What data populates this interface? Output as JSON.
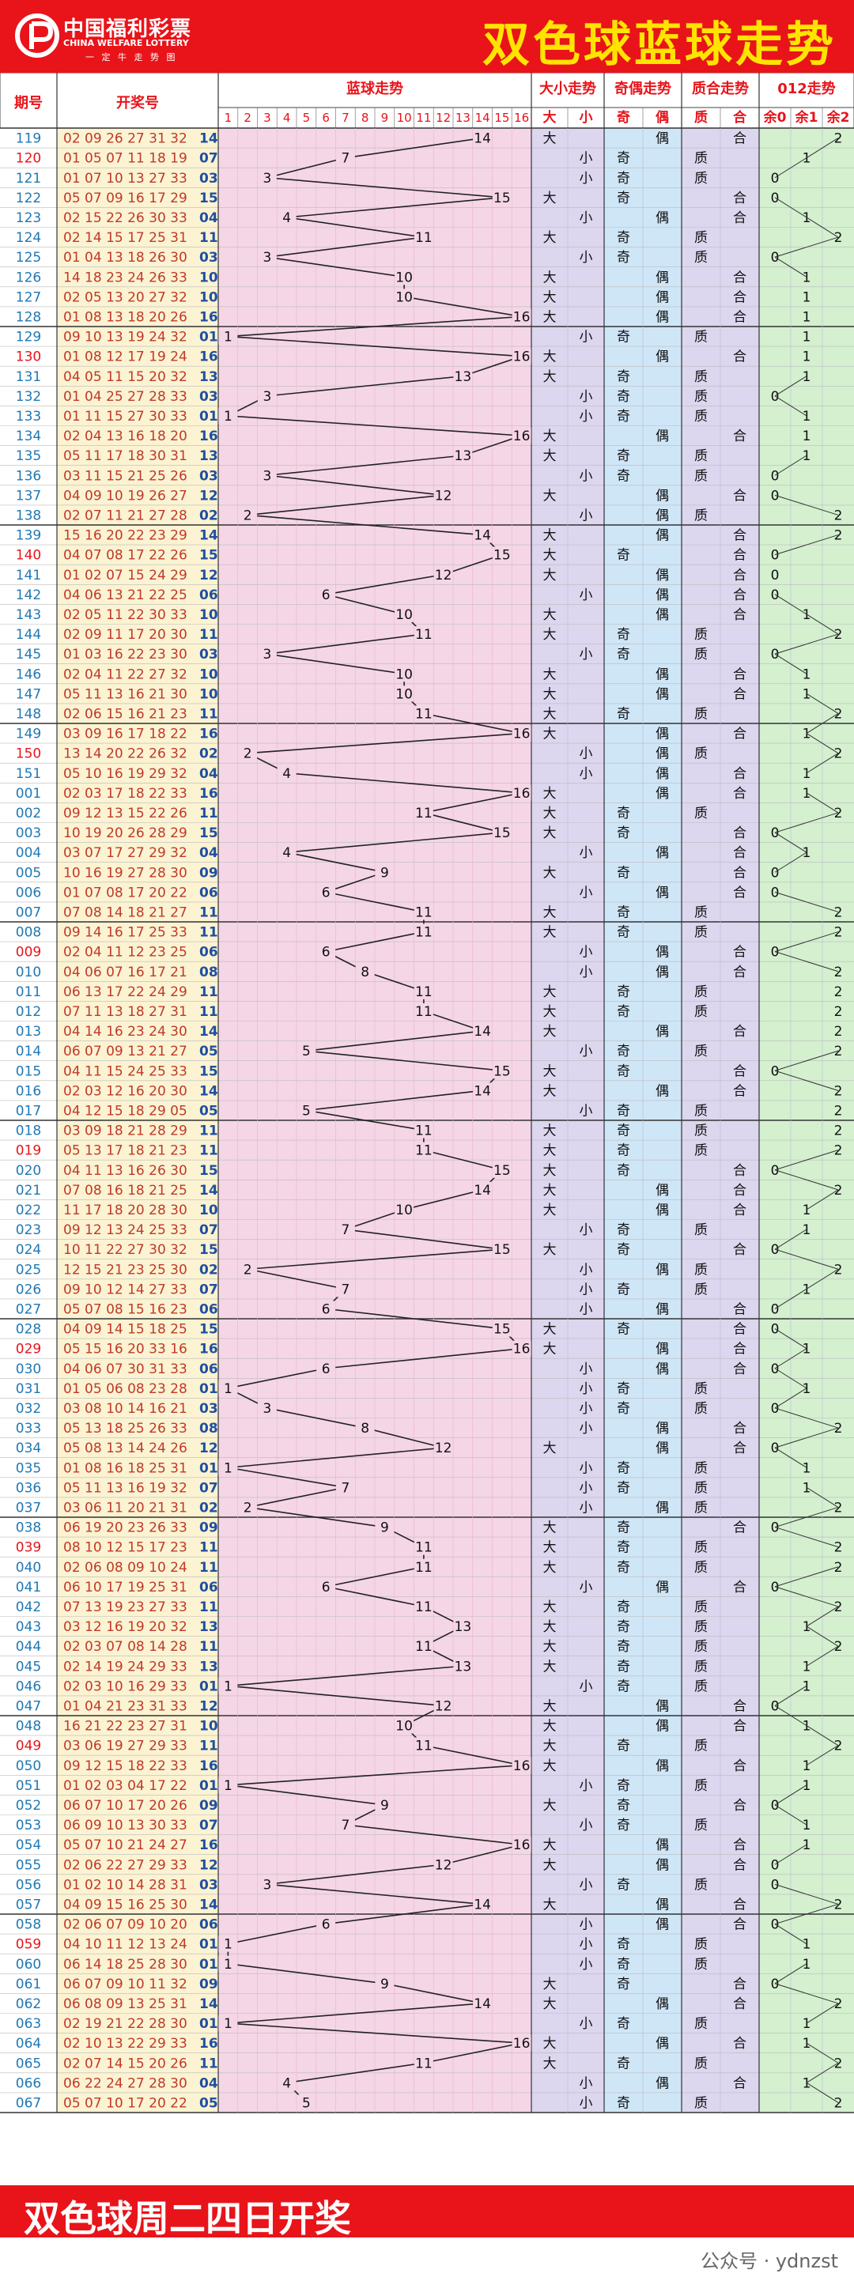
{
  "header": {
    "logo_cn": "中国福利彩票",
    "logo_en": "CHINA WELFARE LOTTERY",
    "logo_slogan": "一 定 牛 走 势 图",
    "title": "双色球蓝球走势"
  },
  "columns": {
    "issue": "期号",
    "draw": "开奖号",
    "blue_trend": "蓝球走势",
    "bigsmall": "大小走势",
    "oddeven": "奇偶走势",
    "primecomp": "质合走势",
    "mod3": "012走势",
    "big": "大",
    "small": "小",
    "odd": "奇",
    "even": "偶",
    "prime": "质",
    "composite": "合",
    "mod0": "余0",
    "mod1": "余1",
    "mod2": "余2",
    "ball_numbers": [
      "1",
      "2",
      "3",
      "4",
      "5",
      "6",
      "7",
      "8",
      "9",
      "10",
      "11",
      "12",
      "13",
      "14",
      "15",
      "16"
    ]
  },
  "footer": {
    "text": "双色球周二四日开奖",
    "watermark": "公众号 · ydnzst"
  },
  "colors": {
    "header_red": "#e8141a",
    "title_yellow": "#ffe400",
    "issue_blue": "#1f78b4",
    "issue_red": "#e8141a",
    "draw_text": "#c0392b",
    "blue_ball": "#1f4fa0",
    "zone_trend": "#f5d6e6",
    "zone_bigsmall": "#dcd6ef",
    "zone_oddeven": "#cfe6f7",
    "zone_primecomp": "#dcd6ef",
    "zone_mod3": "#d4f0cf",
    "zone_draw": "#fbf3d2"
  },
  "chart_data": {
    "type": "table",
    "rows": [
      {
        "issue": "119",
        "reds": "02 09 26 27 31 32",
        "blue": "14"
      },
      {
        "issue": "120",
        "reds": "01 05 07 11 18 19",
        "blue": "07"
      },
      {
        "issue": "121",
        "reds": "01 07 10 13 27 33",
        "blue": "03"
      },
      {
        "issue": "122",
        "reds": "05 07 09 16 17 29",
        "blue": "15"
      },
      {
        "issue": "123",
        "reds": "02 15 22 26 30 33",
        "blue": "04"
      },
      {
        "issue": "124",
        "reds": "02 14 15 17 25 31",
        "blue": "11"
      },
      {
        "issue": "125",
        "reds": "01 04 13 18 26 30",
        "blue": "03"
      },
      {
        "issue": "126",
        "reds": "14 18 23 24 26 33",
        "blue": "10"
      },
      {
        "issue": "127",
        "reds": "02 05 13 20 27 32",
        "blue": "10"
      },
      {
        "issue": "128",
        "reds": "01 08 13 18 20 26",
        "blue": "16"
      },
      {
        "issue": "129",
        "reds": "09 10 13 19 24 32",
        "blue": "01"
      },
      {
        "issue": "130",
        "reds": "01 08 12 17 19 24",
        "blue": "16"
      },
      {
        "issue": "131",
        "reds": "04 05 11 15 20 32",
        "blue": "13"
      },
      {
        "issue": "132",
        "reds": "01 04 25 27 28 33",
        "blue": "03"
      },
      {
        "issue": "133",
        "reds": "01 11 15 27 30 33",
        "blue": "01"
      },
      {
        "issue": "134",
        "reds": "02 04 13 16 18 20",
        "blue": "16"
      },
      {
        "issue": "135",
        "reds": "05 11 17 18 30 31",
        "blue": "13"
      },
      {
        "issue": "136",
        "reds": "03 11 15 21 25 26",
        "blue": "03"
      },
      {
        "issue": "137",
        "reds": "04 09 10 19 26 27",
        "blue": "12"
      },
      {
        "issue": "138",
        "reds": "02 07 11 21 27 28",
        "blue": "02"
      },
      {
        "issue": "139",
        "reds": "15 16 20 22 23 29",
        "blue": "14"
      },
      {
        "issue": "140",
        "reds": "04 07 08 17 22 26",
        "blue": "15"
      },
      {
        "issue": "141",
        "reds": "01 02 07 15 24 29",
        "blue": "12"
      },
      {
        "issue": "142",
        "reds": "04 06 13 21 22 25",
        "blue": "06"
      },
      {
        "issue": "143",
        "reds": "02 05 11 22 30 33",
        "blue": "10"
      },
      {
        "issue": "144",
        "reds": "02 09 11 17 20 30",
        "blue": "11"
      },
      {
        "issue": "145",
        "reds": "01 03 16 22 23 30",
        "blue": "03"
      },
      {
        "issue": "146",
        "reds": "02 04 11 22 27 32",
        "blue": "10"
      },
      {
        "issue": "147",
        "reds": "05 11 13 16 21 30",
        "blue": "10"
      },
      {
        "issue": "148",
        "reds": "02 06 15 16 21 23",
        "blue": "11"
      },
      {
        "issue": "149",
        "reds": "03 09 16 17 18 22",
        "blue": "16"
      },
      {
        "issue": "150",
        "reds": "13 14 20 22 26 32",
        "blue": "02"
      },
      {
        "issue": "151",
        "reds": "05 10 16 19 29 32",
        "blue": "04"
      },
      {
        "issue": "001",
        "reds": "02 03 17 18 22 33",
        "blue": "16"
      },
      {
        "issue": "002",
        "reds": "09 12 13 15 22 26",
        "blue": "11"
      },
      {
        "issue": "003",
        "reds": "10 19 20 26 28 29",
        "blue": "15"
      },
      {
        "issue": "004",
        "reds": "03 07 17 27 29 32",
        "blue": "04"
      },
      {
        "issue": "005",
        "reds": "10 16 19 27 28 30",
        "blue": "09"
      },
      {
        "issue": "006",
        "reds": "01 07 08 17 20 22",
        "blue": "06"
      },
      {
        "issue": "007",
        "reds": "07 08 14 18 21 27",
        "blue": "11"
      },
      {
        "issue": "008",
        "reds": "09 14 16 17 25 33",
        "blue": "11"
      },
      {
        "issue": "009",
        "reds": "02 04 11 12 23 25",
        "blue": "06"
      },
      {
        "issue": "010",
        "reds": "04 06 07 16 17 21",
        "blue": "08"
      },
      {
        "issue": "011",
        "reds": "06 13 17 22 24 29",
        "blue": "11"
      },
      {
        "issue": "012",
        "reds": "07 11 13 18 27 31",
        "blue": "11"
      },
      {
        "issue": "013",
        "reds": "04 14 16 23 24 30",
        "blue": "14"
      },
      {
        "issue": "014",
        "reds": "06 07 09 13 21 27",
        "blue": "05"
      },
      {
        "issue": "015",
        "reds": "04 11 15 24 25 33",
        "blue": "15"
      },
      {
        "issue": "016",
        "reds": "02 03 12 16 20 30",
        "blue": "14"
      },
      {
        "issue": "017",
        "reds": "04 12 15 18 29 05",
        "blue": "05"
      },
      {
        "issue": "018",
        "reds": "03 09 18 21 28 29",
        "blue": "11"
      },
      {
        "issue": "019",
        "reds": "05 13 17 18 21 23",
        "blue": "11"
      },
      {
        "issue": "020",
        "reds": "04 11 13 16 26 30",
        "blue": "15"
      },
      {
        "issue": "021",
        "reds": "07 08 16 18 21 25",
        "blue": "14"
      },
      {
        "issue": "022",
        "reds": "11 17 18 20 28 30",
        "blue": "10"
      },
      {
        "issue": "023",
        "reds": "09 12 13 24 25 33",
        "blue": "07"
      },
      {
        "issue": "024",
        "reds": "10 11 22 27 30 32",
        "blue": "15"
      },
      {
        "issue": "025",
        "reds": "12 15 21 23 25 30",
        "blue": "02"
      },
      {
        "issue": "026",
        "reds": "09 10 12 14 27 33",
        "blue": "07"
      },
      {
        "issue": "027",
        "reds": "05 07 08 15 16 23",
        "blue": "06"
      },
      {
        "issue": "028",
        "reds": "04 09 14 15 18 25",
        "blue": "15"
      },
      {
        "issue": "029",
        "reds": "05 15 16 20 33 16",
        "blue": "16"
      },
      {
        "issue": "030",
        "reds": "04 06 07 30 31 33",
        "blue": "06"
      },
      {
        "issue": "031",
        "reds": "01 05 06 08 23 28",
        "blue": "01"
      },
      {
        "issue": "032",
        "reds": "03 08 10 14 16 21",
        "blue": "03"
      },
      {
        "issue": "033",
        "reds": "05 13 18 25 26 33",
        "blue": "08"
      },
      {
        "issue": "034",
        "reds": "05 08 13 14 24 26",
        "blue": "12"
      },
      {
        "issue": "035",
        "reds": "01 08 16 18 25 31",
        "blue": "01"
      },
      {
        "issue": "036",
        "reds": "05 11 13 16 19 32",
        "blue": "07"
      },
      {
        "issue": "037",
        "reds": "03 06 11 20 21 31",
        "blue": "02"
      },
      {
        "issue": "038",
        "reds": "06 19 20 23 26 33",
        "blue": "09"
      },
      {
        "issue": "039",
        "reds": "08 10 12 15 17 23",
        "blue": "11"
      },
      {
        "issue": "040",
        "reds": "02 06 08 09 10 24",
        "blue": "11"
      },
      {
        "issue": "041",
        "reds": "06 10 17 19 25 31",
        "blue": "06"
      },
      {
        "issue": "042",
        "reds": "07 13 19 23 27 33",
        "blue": "11"
      },
      {
        "issue": "043",
        "reds": "03 12 16 19 20 32",
        "blue": "13"
      },
      {
        "issue": "044",
        "reds": "02 03 07 08 14 28",
        "blue": "11"
      },
      {
        "issue": "045",
        "reds": "02 14 19 24 29 33",
        "blue": "13"
      },
      {
        "issue": "046",
        "reds": "02 03 10 16 29 33",
        "blue": "01"
      },
      {
        "issue": "047",
        "reds": "01 04 21 23 31 33",
        "blue": "12"
      },
      {
        "issue": "048",
        "reds": "16 21 22 23 27 31",
        "blue": "10"
      },
      {
        "issue": "049",
        "reds": "03 06 19 27 29 33",
        "blue": "11"
      },
      {
        "issue": "050",
        "reds": "09 12 15 18 22 33",
        "blue": "16"
      },
      {
        "issue": "051",
        "reds": "01 02 03 04 17 22",
        "blue": "01"
      },
      {
        "issue": "052",
        "reds": "06 07 10 17 20 26",
        "blue": "09"
      },
      {
        "issue": "053",
        "reds": "06 09 10 13 30 33",
        "blue": "07"
      },
      {
        "issue": "054",
        "reds": "05 07 10 21 24 27",
        "blue": "16"
      },
      {
        "issue": "055",
        "reds": "02 06 22 27 29 33",
        "blue": "12"
      },
      {
        "issue": "056",
        "reds": "01 02 10 14 28 31",
        "blue": "03"
      },
      {
        "issue": "057",
        "reds": "04 09 15 16 25 30",
        "blue": "14"
      },
      {
        "issue": "058",
        "reds": "02 06 07 09 10 20",
        "blue": "06"
      },
      {
        "issue": "059",
        "reds": "04 10 11 12 13 24",
        "blue": "01"
      },
      {
        "issue": "060",
        "reds": "06 14 18 25 28 30",
        "blue": "01"
      },
      {
        "issue": "061",
        "reds": "06 07 09 10 11 32",
        "blue": "09"
      },
      {
        "issue": "062",
        "reds": "06 08 09 13 25 31",
        "blue": "14"
      },
      {
        "issue": "063",
        "reds": "02 19 21 22 28 30",
        "blue": "01"
      },
      {
        "issue": "064",
        "reds": "02 10 13 22 29 33",
        "blue": "16"
      },
      {
        "issue": "065",
        "reds": "02 07 14 15 20 26",
        "blue": "11"
      },
      {
        "issue": "066",
        "reds": "06 22 24 27 28 30",
        "blue": "04"
      },
      {
        "issue": "067",
        "reds": "05 07 10 17 20 22",
        "blue": "05"
      }
    ]
  }
}
